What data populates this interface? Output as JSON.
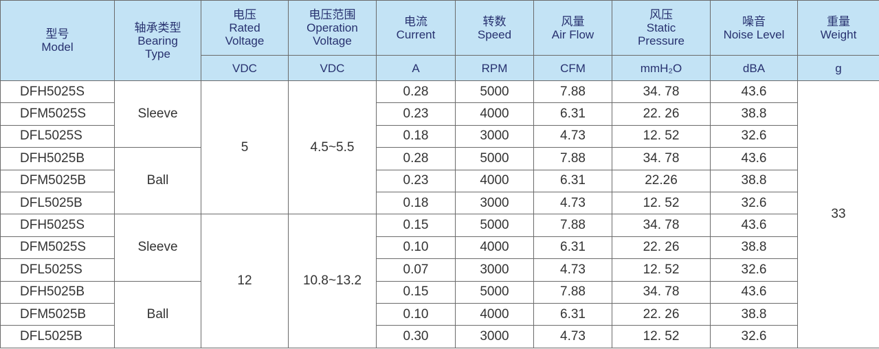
{
  "table": {
    "header": [
      {
        "lines": [
          "型号",
          "Model"
        ]
      },
      {
        "lines": [
          "轴承类型",
          "Bearing",
          "Type"
        ]
      },
      {
        "lines": [
          "电压",
          "Rated",
          "Voltage"
        ]
      },
      {
        "lines": [
          "电压范围",
          "Operation",
          "Voltage"
        ]
      },
      {
        "lines": [
          "电流",
          "Current"
        ]
      },
      {
        "lines": [
          "转数",
          "Speed"
        ]
      },
      {
        "lines": [
          "风量",
          "Air Flow"
        ]
      },
      {
        "lines": [
          "风压",
          "Static",
          "Pressure"
        ]
      },
      {
        "lines": [
          "噪音",
          "Noise Level"
        ]
      },
      {
        "lines": [
          "重量",
          "Weight"
        ]
      }
    ],
    "units": [
      "VDC",
      "VDC",
      "A",
      "RPM",
      "CFM",
      "mmH₂O",
      "dBA",
      "g"
    ],
    "voltage_groups": [
      {
        "rated": "5",
        "range": "4.5~5.5",
        "bearings": [
          {
            "type": "Sleeve",
            "rows": [
              [
                "DFH5025S",
                "0.28",
                "5000",
                "7.88",
                "34. 78",
                "43.6"
              ],
              [
                "DFM5025S",
                "0.23",
                "4000",
                "6.31",
                "22. 26",
                "38.8"
              ],
              [
                "DFL5025S",
                "0.18",
                "3000",
                "4.73",
                "12. 52",
                "32.6"
              ]
            ]
          },
          {
            "type": "Ball",
            "rows": [
              [
                "DFH5025B",
                "0.28",
                "5000",
                "7.88",
                "34. 78",
                "43.6"
              ],
              [
                "DFM5025B",
                "0.23",
                "4000",
                "6.31",
                "22.26",
                "38.8"
              ],
              [
                "DFL5025B",
                "0.18",
                "3000",
                "4.73",
                "12. 52",
                "32.6"
              ]
            ]
          }
        ]
      },
      {
        "rated": "12",
        "range": "10.8~13.2",
        "bearings": [
          {
            "type": "Sleeve",
            "rows": [
              [
                "DFH5025S",
                "0.15",
                "5000",
                "7.88",
                "34. 78",
                "43.6"
              ],
              [
                "DFM5025S",
                "0.10",
                "4000",
                "6.31",
                "22. 26",
                "38.8"
              ],
              [
                "DFL5025S",
                "0.07",
                "3000",
                "4.73",
                "12. 52",
                "32.6"
              ]
            ]
          },
          {
            "type": "Ball",
            "rows": [
              [
                "DFH5025B",
                "0.15",
                "5000",
                "7.88",
                "34. 78",
                "43.6"
              ],
              [
                "DFM5025B",
                "0.10",
                "4000",
                "6.31",
                "22. 26",
                "38.8"
              ],
              [
                "DFL5025B",
                "0.30",
                "3000",
                "4.73",
                "12. 52",
                "32.6"
              ]
            ]
          }
        ]
      }
    ],
    "weight": "33"
  }
}
